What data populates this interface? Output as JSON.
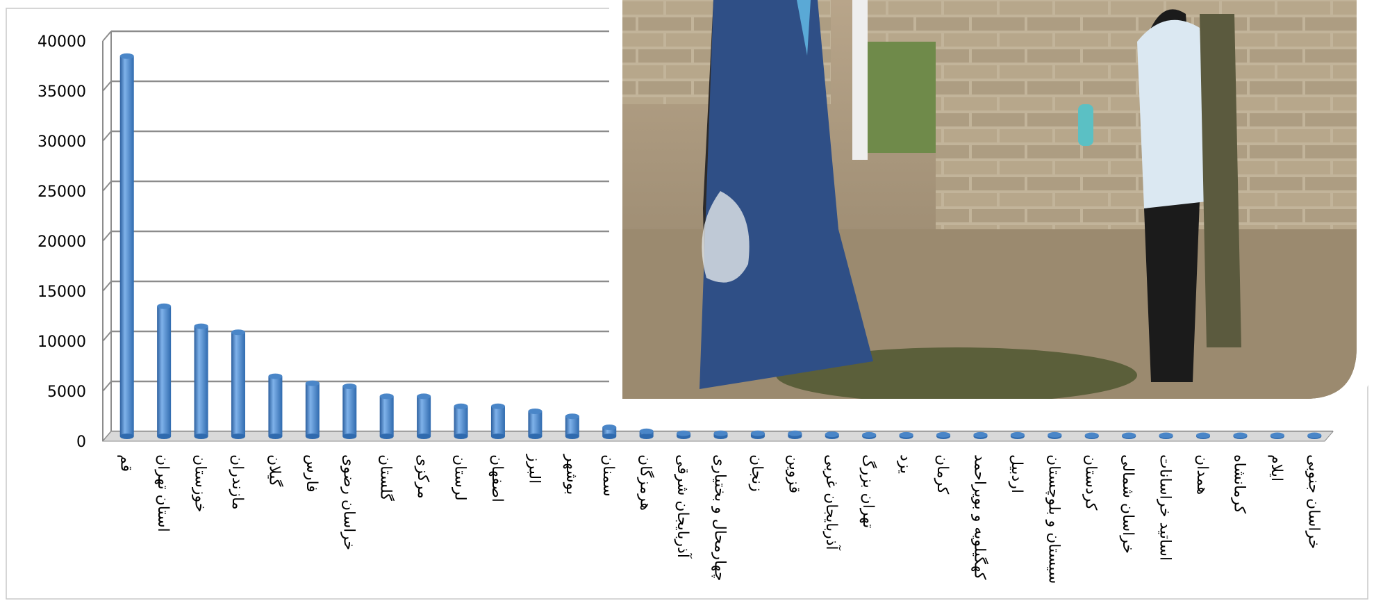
{
  "chart_data": {
    "type": "bar",
    "categories": [
      "قم",
      "استان تهران",
      "خوزستان",
      "مازندران",
      "گیلان",
      "فارس",
      "خراسان رضوی",
      "گلستان",
      "مرکزی",
      "لرستان",
      "اصفهان",
      "البرز",
      "بوشهر",
      "سمنان",
      "هرمزگان",
      "آذربایجان شرقی",
      "چهارمحال و بختیاری",
      "زنجان",
      "قزوین",
      "آذربایجان غربی",
      "تهران بزرگ",
      "یزد",
      "کرمان",
      "کهگیلویه و بویراحمد",
      "اردبیل",
      "سیستان و بلوچستان",
      "کردستان",
      "خراسان شمالی",
      "اساتید خراسانات",
      "همدان",
      "کرمانشاه",
      "ایلام",
      "خراسان جنوبی"
    ],
    "values": [
      38000,
      13000,
      11000,
      10400,
      6000,
      5300,
      5000,
      4000,
      4000,
      3000,
      3000,
      2500,
      2000,
      900,
      500,
      300,
      300,
      300,
      300,
      200,
      150,
      150,
      150,
      150,
      150,
      150,
      100,
      100,
      100,
      100,
      100,
      100,
      100
    ],
    "color": "#4a86c8",
    "ylim": [
      0,
      40000
    ],
    "yticks": [
      0,
      5000,
      10000,
      15000,
      20000,
      25000,
      30000,
      35000,
      40000
    ],
    "grid": true
  }
}
